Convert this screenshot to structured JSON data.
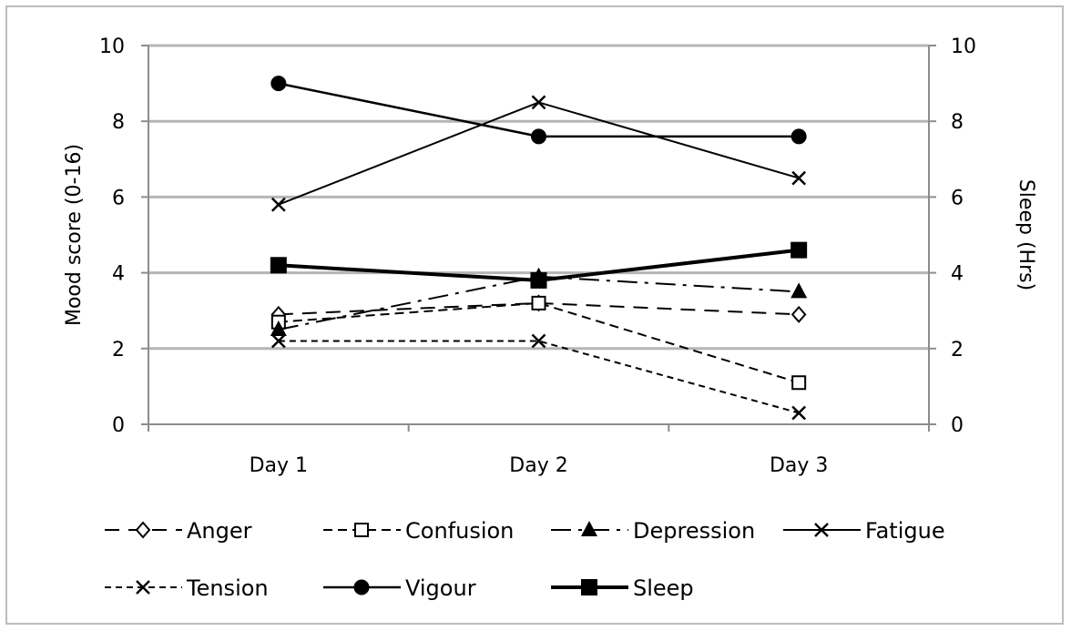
{
  "chart_data": {
    "type": "line",
    "categories": [
      "Day 1",
      "Day 2",
      "Day 3"
    ],
    "ylabel": "Mood score (0-16)",
    "y2label": "Sleep (Hrs)",
    "ylim": [
      0,
      10
    ],
    "y2lim": [
      0,
      10
    ],
    "yticks": [
      "0",
      "2",
      "4",
      "6",
      "8",
      "10"
    ],
    "y2ticks": [
      "0",
      "2",
      "4",
      "6",
      "8",
      "10"
    ],
    "grid": "horizontal",
    "legend_position": "bottom",
    "series": [
      {
        "name": "Anger",
        "values": [
          2.9,
          3.2,
          2.9
        ],
        "axis": "left",
        "dash": "16,10",
        "marker": "diamond-open",
        "width": 2
      },
      {
        "name": "Confusion",
        "values": [
          2.7,
          3.2,
          1.1
        ],
        "axis": "left",
        "dash": "10,6",
        "marker": "square-open",
        "width": 2
      },
      {
        "name": "Depression",
        "values": [
          2.5,
          3.9,
          3.5
        ],
        "axis": "left",
        "dash": "22,8,4,8",
        "marker": "triangle",
        "width": 2
      },
      {
        "name": "Fatigue",
        "values": [
          5.8,
          8.5,
          6.5
        ],
        "axis": "left",
        "dash": "",
        "marker": "x",
        "width": 2
      },
      {
        "name": "Tension",
        "values": [
          2.2,
          2.2,
          0.3
        ],
        "axis": "left",
        "dash": "7,5",
        "marker": "x",
        "width": 2
      },
      {
        "name": "Vigour",
        "values": [
          9.0,
          7.6,
          7.6
        ],
        "axis": "left",
        "dash": "",
        "marker": "circle",
        "width": 2.5
      },
      {
        "name": "Sleep",
        "values": [
          4.2,
          3.8,
          4.6
        ],
        "axis": "right",
        "dash": "",
        "marker": "square",
        "width": 4
      }
    ]
  }
}
